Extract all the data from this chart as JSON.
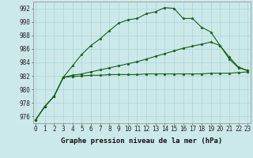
{
  "background_color": "#cce9e9",
  "grid_color": "#aad4d4",
  "line_color": "#1a5c1a",
  "marker": "*",
  "x": [
    0,
    1,
    2,
    3,
    4,
    5,
    6,
    7,
    8,
    9,
    10,
    11,
    12,
    13,
    14,
    15,
    16,
    17,
    18,
    19,
    20,
    21,
    22,
    23
  ],
  "series1": [
    975.5,
    977.5,
    979.0,
    981.8,
    983.5,
    985.2,
    986.5,
    987.5,
    988.7,
    989.8,
    990.3,
    990.5,
    991.2,
    991.5,
    992.1,
    992.0,
    990.5,
    990.5,
    989.2,
    988.5,
    986.5,
    984.5,
    983.2,
    982.8
  ],
  "series2": [
    975.5,
    977.5,
    979.0,
    981.8,
    981.9,
    982.0,
    982.1,
    982.1,
    982.2,
    982.2,
    982.2,
    982.2,
    982.3,
    982.3,
    982.3,
    982.3,
    982.3,
    982.3,
    982.3,
    982.4,
    982.4,
    982.4,
    982.5,
    982.6
  ],
  "series3": [
    975.5,
    977.5,
    979.0,
    981.8,
    982.1,
    982.3,
    982.6,
    982.9,
    983.2,
    983.5,
    983.8,
    984.1,
    984.5,
    984.9,
    985.3,
    985.7,
    986.1,
    986.4,
    986.7,
    987.0,
    986.5,
    984.8,
    983.3,
    982.8
  ],
  "xlabel": "Graphe pression niveau de la mer (hPa)",
  "ylim": [
    975.0,
    993.0
  ],
  "yticks": [
    976,
    978,
    980,
    982,
    984,
    986,
    988,
    990,
    992
  ],
  "xticks": [
    0,
    1,
    2,
    3,
    4,
    5,
    6,
    7,
    8,
    9,
    10,
    11,
    12,
    13,
    14,
    15,
    16,
    17,
    18,
    19,
    20,
    21,
    22,
    23
  ],
  "tick_fontsize": 5.5,
  "xlabel_fontsize": 6.5
}
